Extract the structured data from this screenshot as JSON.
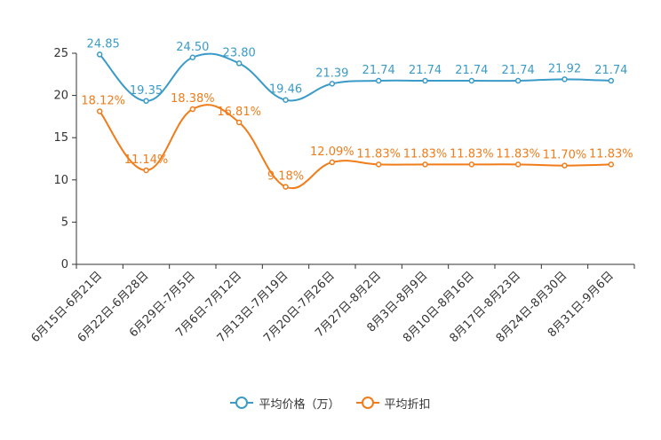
{
  "chart_data": {
    "type": "line",
    "categories": [
      "6月15日-6月21日",
      "6月22日-6月28日",
      "6月29日-7月5日",
      "7月6日-7月12日",
      "7月13日-7月19日",
      "7月20日-7月26日",
      "7月27日-8月2日",
      "8月3日-8月9日",
      "8月10日-8月16日",
      "8月17日-8月23日",
      "8月24日-8月30日",
      "8月31日-9月6日"
    ],
    "ylim": [
      0,
      25
    ],
    "yticks": [
      0,
      5,
      10,
      15,
      20,
      25
    ],
    "series": [
      {
        "name": "平均价格（万）",
        "color": "#3a9bc8",
        "values": [
          24.85,
          19.35,
          24.5,
          23.8,
          19.46,
          21.39,
          21.74,
          21.74,
          21.74,
          21.74,
          21.92,
          21.74
        ],
        "labels": [
          "24.85",
          "19.35",
          "24.50",
          "23.80",
          "19.46",
          "21.39",
          "21.74",
          "21.74",
          "21.74",
          "21.74",
          "21.92",
          "21.74"
        ]
      },
      {
        "name": "平均折扣",
        "color": "#f07c1a",
        "values": [
          18.12,
          11.14,
          18.38,
          16.81,
          9.18,
          12.09,
          11.83,
          11.83,
          11.83,
          11.83,
          11.7,
          11.83
        ],
        "labels": [
          "18.12%",
          "11.14%",
          "18.38%",
          "16.81%",
          "9.18%",
          "12.09%",
          "11.83%",
          "11.83%",
          "11.83%",
          "11.83%",
          "11.70%",
          "11.83%"
        ]
      }
    ],
    "legend_position": "bottom",
    "grid": false
  },
  "legend": {
    "items": [
      {
        "label": "平均价格（万）",
        "color": "#3a9bc8"
      },
      {
        "label": "平均折扣",
        "color": "#f07c1a"
      }
    ]
  }
}
